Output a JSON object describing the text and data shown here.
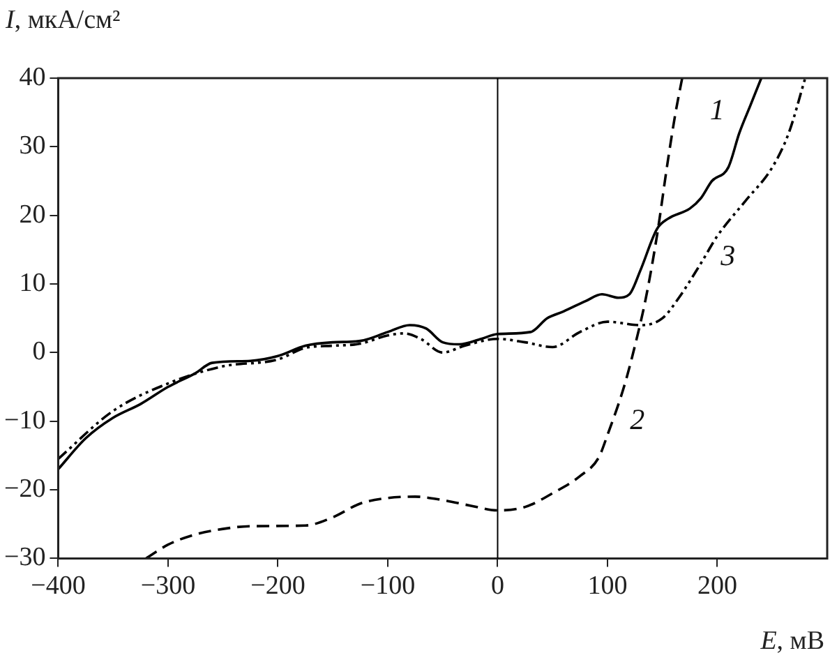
{
  "chart_data": {
    "type": "line",
    "xlabel": "E, мВ",
    "ylabel": "I, мкА/см²",
    "xlim": [
      -400,
      300
    ],
    "ylim": [
      -30,
      40
    ],
    "xticks": [
      -400,
      -300,
      -200,
      -100,
      0,
      100,
      200
    ],
    "yticks": [
      -30,
      -20,
      -10,
      0,
      10,
      20,
      30,
      40
    ],
    "grid": false,
    "legend": false,
    "marker": "none",
    "ref_lines": [
      {
        "axis": "x",
        "value": 0,
        "color": "#000000",
        "line_style": "solid"
      }
    ],
    "series": [
      {
        "name": "1",
        "color": "#000000",
        "line_style": "solid",
        "x": [
          -400,
          -375,
          -350,
          -325,
          -300,
          -275,
          -260,
          -225,
          -200,
          -175,
          -150,
          -125,
          -100,
          -80,
          -65,
          -50,
          -35,
          -15,
          0,
          30,
          45,
          60,
          80,
          95,
          110,
          120,
          130,
          145,
          155,
          175,
          185,
          195,
          210,
          220,
          230,
          240
        ],
        "values": [
          -17,
          -12.5,
          -9.5,
          -7.5,
          -5,
          -3,
          -1.5,
          -1.2,
          -0.5,
          1,
          1.5,
          1.7,
          3,
          4,
          3.5,
          1.5,
          1.2,
          2,
          2.7,
          3,
          5,
          6,
          7.5,
          8.5,
          8,
          8.5,
          12,
          18,
          19.5,
          21,
          22.5,
          25,
          27,
          32,
          36,
          40
        ]
      },
      {
        "name": "2",
        "color": "#000000",
        "line_style": "dashed",
        "x": [
          -320,
          -300,
          -275,
          -250,
          -225,
          -175,
          -150,
          -125,
          -100,
          -75,
          -50,
          -25,
          0,
          25,
          50,
          75,
          92,
          100,
          115,
          125,
          135,
          145,
          155,
          162,
          168
        ],
        "values": [
          -30,
          -28,
          -26.5,
          -25.7,
          -25.3,
          -25.2,
          -24,
          -22,
          -21.2,
          -21,
          -21.5,
          -22.3,
          -23,
          -22.5,
          -20.5,
          -18,
          -15.3,
          -12,
          -5,
          1,
          8,
          17,
          28,
          35,
          40
        ]
      },
      {
        "name": "3",
        "color": "#000000",
        "line_style": "dotted",
        "x": [
          -400,
          -350,
          -300,
          -250,
          -200,
          -175,
          -150,
          -125,
          -100,
          -85,
          -70,
          -50,
          -30,
          0,
          25,
          50,
          75,
          100,
          130,
          150,
          165,
          185,
          200,
          225,
          250,
          265,
          280
        ],
        "values": [
          -15.5,
          -8.5,
          -4.5,
          -2,
          -1,
          0.7,
          1,
          1.3,
          2.5,
          2.8,
          2,
          0,
          1,
          2,
          1.5,
          0.8,
          3,
          4.5,
          4,
          5,
          8,
          13,
          17,
          22,
          27,
          32,
          40
        ]
      }
    ]
  }
}
